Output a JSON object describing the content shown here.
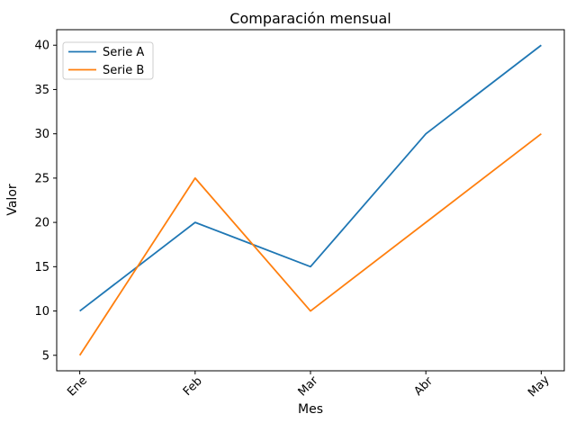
{
  "chart_data": {
    "type": "line",
    "title": "Comparación mensual",
    "xlabel": "Mes",
    "ylabel": "Valor",
    "categories": [
      "Ene",
      "Feb",
      "Mar",
      "Abr",
      "May"
    ],
    "series": [
      {
        "name": "Serie A",
        "color": "#1f77b4",
        "values": [
          10,
          20,
          15,
          30,
          40
        ]
      },
      {
        "name": "Serie B",
        "color": "#ff7f0e",
        "values": [
          5,
          25,
          10,
          20,
          30
        ]
      }
    ],
    "yticks": [
      5,
      10,
      15,
      20,
      25,
      30,
      35,
      40
    ],
    "ylim": [
      3.25,
      41.75
    ],
    "x_tick_rotation": 45,
    "grid": false,
    "legend_position": "upper left",
    "colors": {
      "axes": "#000000",
      "text": "#000000",
      "legend_border": "#cccccc",
      "background": "#ffffff"
    }
  }
}
